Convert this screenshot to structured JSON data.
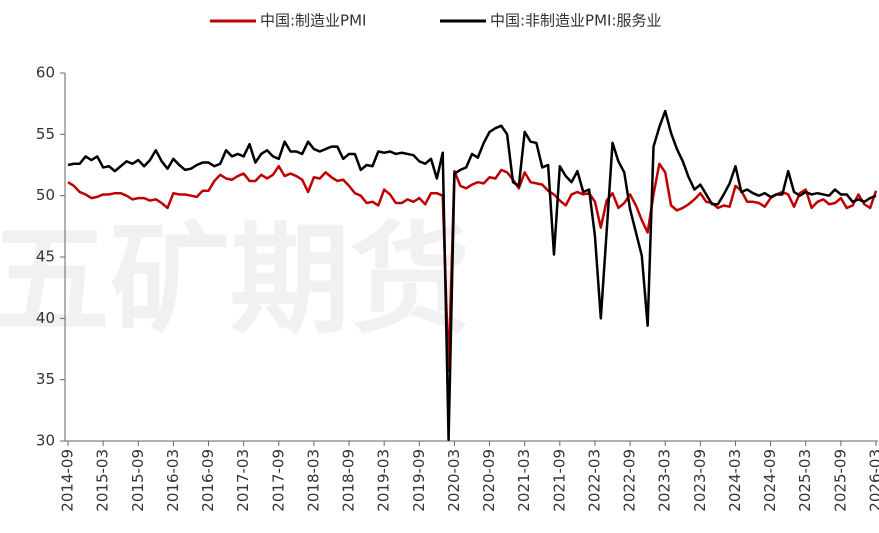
{
  "chart_data": {
    "type": "line",
    "watermark": "五矿期货",
    "categories": [
      "2014-09",
      null,
      null,
      null,
      null,
      null,
      "2015-03",
      null,
      null,
      null,
      null,
      null,
      "2015-09",
      null,
      null,
      null,
      null,
      null,
      "2016-03",
      null,
      null,
      null,
      null,
      null,
      "2016-09",
      null,
      null,
      null,
      null,
      null,
      "2017-03",
      null,
      null,
      null,
      null,
      null,
      "2017-09",
      null,
      null,
      null,
      null,
      null,
      "2018-03",
      null,
      null,
      null,
      null,
      null,
      "2018-09",
      null,
      null,
      null,
      null,
      null,
      "2019-03",
      null,
      null,
      null,
      null,
      null,
      "2019-09",
      null,
      null,
      null,
      null,
      null,
      "2020-03",
      null,
      null,
      null,
      null,
      null,
      "2020-09",
      null,
      null,
      null,
      null,
      null,
      "2021-03",
      null,
      null,
      null,
      null,
      null,
      "2021-09",
      null,
      null,
      null,
      null,
      null,
      "2022-03",
      null,
      null,
      null,
      null,
      null,
      "2022-09",
      null,
      null,
      null,
      null,
      null,
      "2023-03",
      null,
      null,
      null,
      null,
      null,
      "2023-09",
      null,
      null,
      null,
      null,
      null,
      "2024-03",
      null,
      null,
      null,
      null,
      null,
      "2024-09",
      null,
      null,
      null,
      null,
      null,
      "2025-03",
      null,
      null,
      null,
      null,
      null,
      "2025-09",
      null,
      null,
      null,
      null,
      null,
      "2026-03"
    ],
    "series": [
      {
        "name": "中国:制造业PMI",
        "color": "#c00000",
        "values": [
          51.1,
          50.8,
          50.3,
          50.1,
          49.8,
          49.9,
          50.1,
          50.1,
          50.2,
          50.2,
          50.0,
          49.7,
          49.8,
          49.8,
          49.6,
          49.7,
          49.4,
          49.0,
          50.2,
          50.1,
          50.1,
          50.0,
          49.9,
          50.4,
          50.4,
          51.2,
          51.7,
          51.4,
          51.3,
          51.6,
          51.8,
          51.2,
          51.2,
          51.7,
          51.4,
          51.7,
          52.4,
          51.6,
          51.8,
          51.6,
          51.3,
          50.3,
          51.5,
          51.4,
          51.9,
          51.5,
          51.2,
          51.3,
          50.8,
          50.2,
          50.0,
          49.4,
          49.5,
          49.2,
          50.5,
          50.1,
          49.4,
          49.4,
          49.7,
          49.5,
          49.8,
          49.3,
          50.2,
          50.2,
          50.0,
          35.7,
          52.0,
          50.8,
          50.6,
          50.9,
          51.1,
          51.0,
          51.5,
          51.4,
          52.1,
          51.9,
          51.3,
          50.6,
          51.9,
          51.1,
          51.0,
          50.9,
          50.4,
          50.1,
          49.6,
          49.2,
          50.1,
          50.3,
          50.1,
          50.2,
          49.5,
          47.4,
          49.6,
          50.2,
          49.0,
          49.4,
          50.1,
          49.2,
          48.0,
          47.0,
          50.1,
          52.6,
          51.9,
          49.2,
          48.8,
          49.0,
          49.3,
          49.7,
          50.2,
          49.5,
          49.4,
          49.0,
          49.2,
          49.1,
          50.8,
          50.4,
          49.5,
          49.5,
          49.4,
          49.1,
          49.8,
          50.1,
          50.3,
          50.1,
          49.1,
          50.2,
          50.5,
          49.0,
          49.5,
          49.7,
          49.3,
          49.4,
          49.8,
          49.0,
          49.2,
          50.1,
          49.3,
          49.0,
          50.4
        ]
      },
      {
        "name": "中国:非制造业PMI:服务业",
        "color": "#000000",
        "values": [
          52.5,
          52.6,
          52.6,
          53.2,
          52.9,
          53.2,
          52.3,
          52.4,
          52.0,
          52.4,
          52.8,
          52.6,
          52.9,
          52.4,
          52.9,
          53.7,
          52.8,
          52.2,
          53.0,
          52.5,
          52.1,
          52.2,
          52.5,
          52.7,
          52.7,
          52.4,
          52.6,
          53.7,
          53.2,
          53.4,
          53.2,
          54.2,
          52.7,
          53.4,
          53.7,
          53.2,
          53.0,
          54.4,
          53.6,
          53.6,
          53.4,
          54.4,
          53.8,
          53.6,
          53.8,
          54.0,
          54.0,
          53.0,
          53.4,
          53.4,
          52.1,
          52.5,
          52.4,
          53.6,
          53.5,
          53.6,
          53.4,
          53.5,
          53.4,
          53.3,
          52.8,
          52.6,
          53.0,
          51.4,
          53.5,
          30.1,
          51.8,
          52.1,
          52.3,
          53.4,
          53.1,
          54.3,
          55.2,
          55.5,
          55.7,
          55.0,
          51.1,
          50.8,
          55.2,
          54.4,
          54.3,
          52.3,
          52.5,
          45.2,
          52.4,
          51.6,
          51.1,
          52.0,
          50.3,
          50.5,
          46.7,
          40.0,
          47.1,
          54.3,
          52.8,
          51.9,
          48.9,
          47.0,
          45.1,
          39.4,
          54.0,
          55.6,
          56.9,
          55.1,
          53.8,
          52.8,
          51.5,
          50.5,
          50.9,
          50.1,
          49.3,
          49.3,
          50.1,
          51.0,
          52.4,
          50.3,
          50.5,
          50.2,
          50.0,
          50.2,
          49.9,
          50.1,
          50.1,
          52.0,
          50.3,
          50.0,
          50.3,
          50.1,
          50.2,
          50.1,
          50.0,
          50.5,
          50.1,
          50.1,
          49.5,
          49.7,
          49.5,
          49.8,
          50.0
        ]
      }
    ],
    "ylim": [
      30,
      60
    ],
    "yticks": [
      30,
      35,
      40,
      45,
      50,
      55,
      60
    ],
    "legend": "top"
  }
}
